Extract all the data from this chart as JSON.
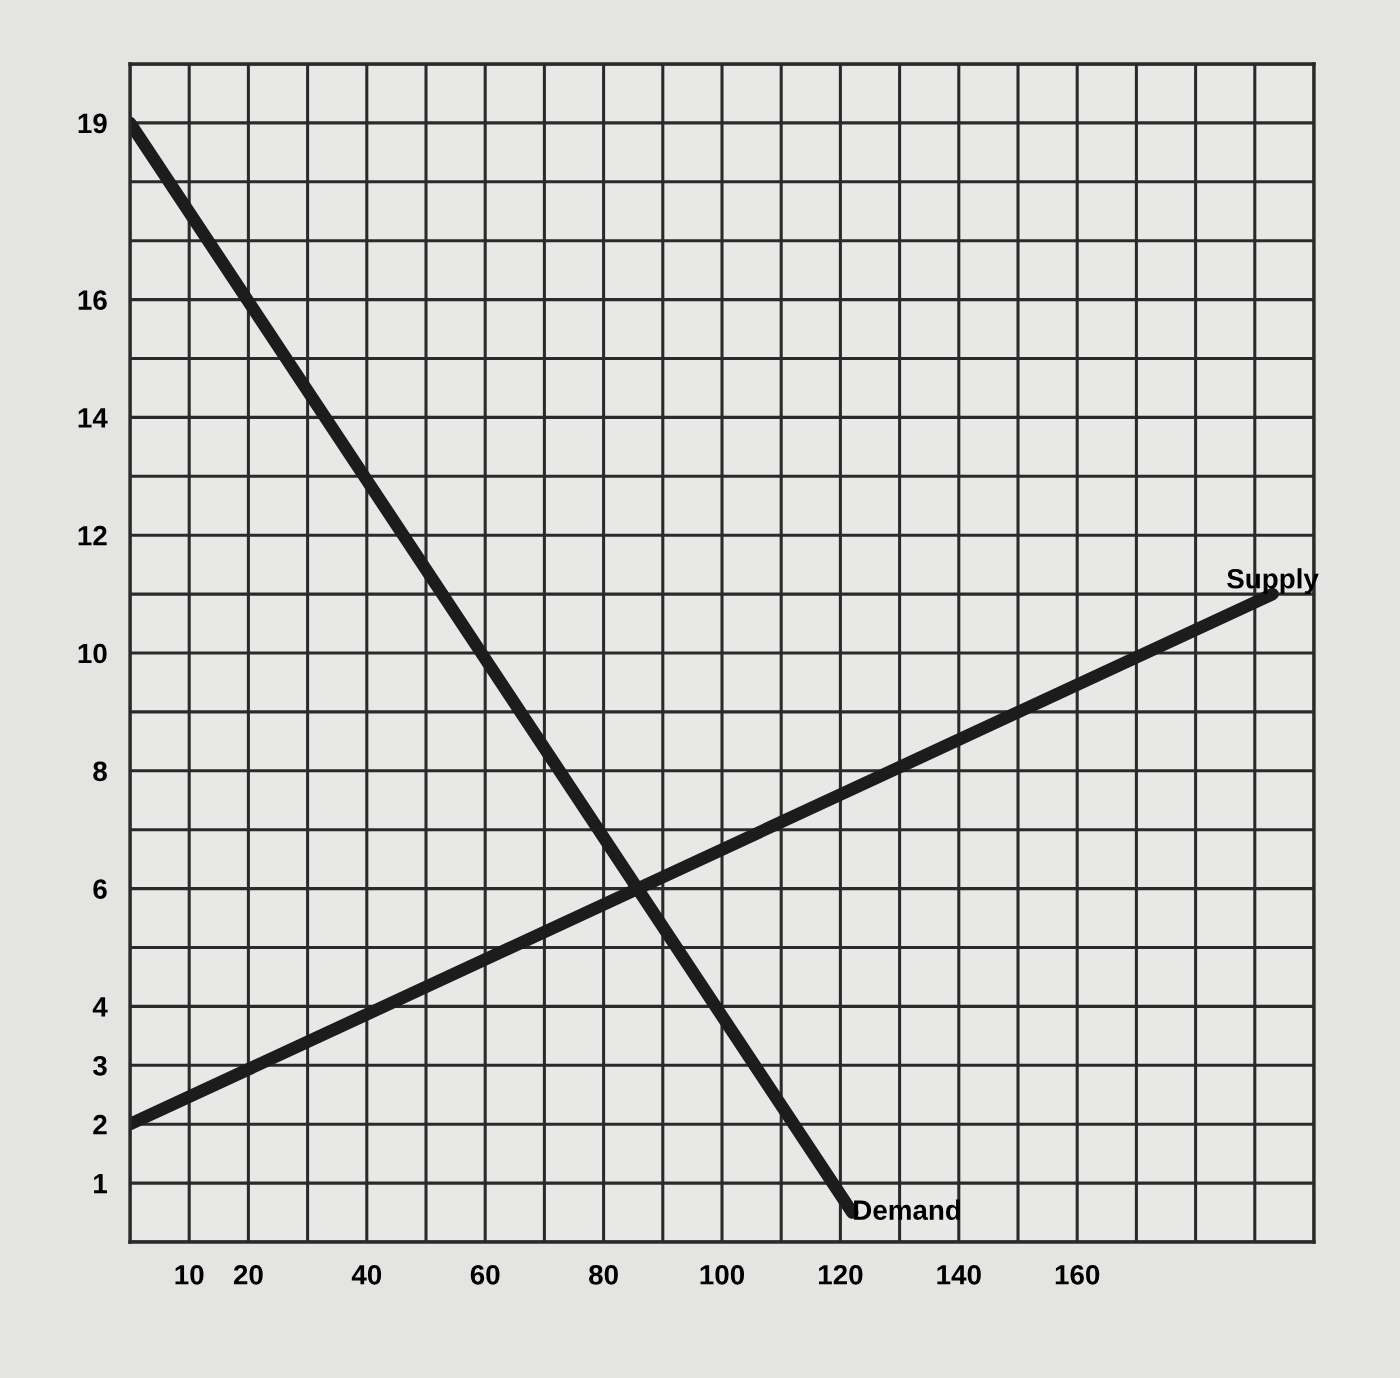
{
  "chart_data": {
    "type": "line",
    "xlim": [
      0,
      200
    ],
    "ylim": [
      0,
      20
    ],
    "xticks": [
      {
        "value": 0,
        "label": null
      },
      10,
      20,
      {
        "value": 30,
        "label": null
      },
      40,
      {
        "value": 50,
        "label": null
      },
      60,
      {
        "value": 70,
        "label": null
      },
      80,
      {
        "value": 90,
        "label": null
      },
      100,
      {
        "value": 110,
        "label": null
      },
      120,
      {
        "value": 130,
        "label": null
      },
      140,
      {
        "value": 150,
        "label": null
      },
      160,
      {
        "value": 170,
        "label": null
      },
      {
        "value": 180,
        "label": null
      },
      {
        "value": 190,
        "label": null
      },
      {
        "value": 200,
        "label": null
      }
    ],
    "yticks": [
      {
        "value": 0,
        "label": null
      },
      1,
      2,
      3,
      4,
      {
        "value": 5,
        "label": null
      },
      6,
      {
        "value": 7,
        "label": null
      },
      8,
      {
        "value": 9,
        "label": null
      },
      10,
      {
        "value": 11,
        "label": null
      },
      12,
      {
        "value": 13,
        "label": null
      },
      14,
      {
        "value": 15,
        "label": null
      },
      16,
      {
        "value": 17,
        "label": null
      },
      {
        "value": 18,
        "label": null
      },
      19,
      {
        "value": 20,
        "label": null
      }
    ],
    "grid": true,
    "legend": false,
    "marker": "none",
    "line_style": "solid",
    "series": [
      {
        "name": "Demand",
        "color": "#1c1c1c",
        "x": [
          0,
          122
        ],
        "values": [
          19,
          0.5
        ]
      },
      {
        "name": "Supply",
        "color": "#1c1c1c",
        "x": [
          0,
          193
        ],
        "values": [
          2,
          11
        ]
      }
    ]
  }
}
